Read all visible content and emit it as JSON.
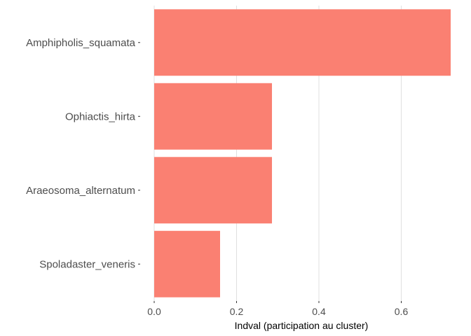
{
  "chart_data": {
    "type": "bar",
    "orientation": "horizontal",
    "categories": [
      "Amphipholis_squamata",
      "Ophiactis_hirta",
      "Araeosoma_alternatum",
      "Spoladaster_veneris"
    ],
    "values": [
      0.72,
      0.286,
      0.286,
      0.16
    ],
    "xlabel": "Indval (participation au cluster)",
    "ylabel": "",
    "title": "",
    "xlim": [
      0,
      0.72
    ],
    "xticks": [
      "0.0",
      "0.2",
      "0.4",
      "0.6"
    ],
    "tick_values": [
      0,
      0.2,
      0.4,
      0.6
    ],
    "bar_color": "#fa8072",
    "grid": "vertical major gridlines",
    "legend": "none"
  }
}
